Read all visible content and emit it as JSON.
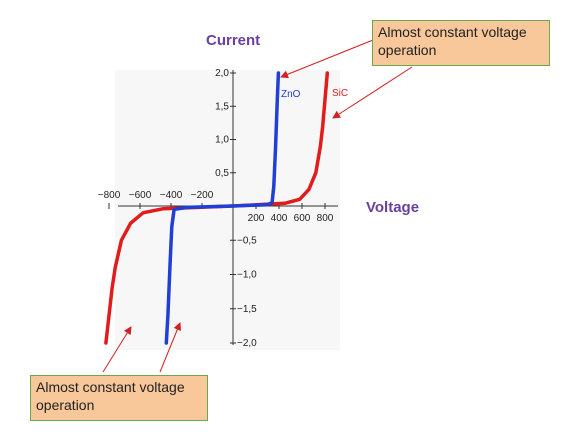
{
  "chart_data": {
    "type": "line",
    "title": "",
    "xlabel": "Voltage",
    "ylabel": "Current",
    "xlim": [
      -900,
      900
    ],
    "ylim": [
      -2.0,
      2.0
    ],
    "x_ticks_positive": [
      "200",
      "400",
      "600",
      "800"
    ],
    "x_ticks_negative": [
      "−800",
      "−600",
      "−400",
      "−200"
    ],
    "y_ticks_positive": [
      "2,0",
      "1,5",
      "1,0",
      "0,5"
    ],
    "y_ticks_negative": [
      "−0,5",
      "−1,0",
      "−1,5",
      "−2,0"
    ],
    "grid": false,
    "series": [
      {
        "name": "ZnO",
        "color": "#1f3fd6",
        "points": [
          [
            -430,
            -2.0
          ],
          [
            -420,
            -1.6
          ],
          [
            -405,
            -0.8
          ],
          [
            -395,
            -0.3
          ],
          [
            -380,
            -0.05
          ],
          [
            -300,
            -0.02
          ],
          [
            0,
            0
          ],
          [
            300,
            0.02
          ],
          [
            340,
            0.05
          ],
          [
            355,
            0.3
          ],
          [
            370,
            0.9
          ],
          [
            385,
            1.6
          ],
          [
            395,
            2.0
          ]
        ]
      },
      {
        "name": "SiC",
        "color": "#e31b1b",
        "points": [
          [
            -820,
            -2.0
          ],
          [
            -800,
            -1.6
          ],
          [
            -780,
            -1.2
          ],
          [
            -760,
            -0.9
          ],
          [
            -720,
            -0.5
          ],
          [
            -660,
            -0.25
          ],
          [
            -580,
            -0.1
          ],
          [
            -450,
            -0.04
          ],
          [
            0,
            0
          ],
          [
            450,
            0.04
          ],
          [
            580,
            0.1
          ],
          [
            660,
            0.25
          ],
          [
            720,
            0.5
          ],
          [
            760,
            0.9
          ],
          [
            780,
            1.2
          ],
          [
            800,
            1.6
          ],
          [
            820,
            2.0
          ]
        ]
      }
    ]
  },
  "callouts": {
    "top": "Almost constant voltage operation",
    "bottom": "Almost constant voltage operation"
  },
  "labels": {
    "current": "Current",
    "voltage": "Voltage"
  },
  "colors": {
    "callout_fill": "#f8c79a",
    "callout_border": "#6aa84f",
    "axis_title": "#6b3fa0",
    "arrow": "#d42020"
  }
}
